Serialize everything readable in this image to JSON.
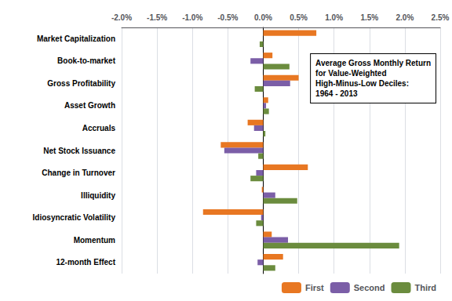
{
  "chart_data": {
    "type": "bar",
    "orientation": "horizontal",
    "categories": [
      "Market Capitalization",
      "Book-to-market",
      "Gross Profitability",
      "Asset Growth",
      "Accruals",
      "Net Stock Issuance",
      "Change in Turnover",
      "Illiquidity",
      "Idiosyncratic Volatility",
      "Momentum",
      "12-month Effect"
    ],
    "series": [
      {
        "name": "First",
        "color": "#E87722",
        "values": [
          0.75,
          0.13,
          0.5,
          0.07,
          -0.22,
          -0.6,
          0.63,
          -0.02,
          -0.85,
          0.12,
          0.28
        ]
      },
      {
        "name": "Second",
        "color": "#7B5EA7",
        "values": [
          0.0,
          -0.18,
          0.38,
          0.04,
          -0.13,
          -0.55,
          -0.1,
          0.17,
          -0.03,
          0.35,
          -0.08
        ]
      },
      {
        "name": "Third",
        "color": "#6B8C3E",
        "values": [
          -0.05,
          0.37,
          -0.12,
          0.08,
          0.03,
          -0.07,
          -0.18,
          0.48,
          -0.1,
          1.92,
          0.17
        ]
      }
    ],
    "xlim": [
      -2.0,
      2.5
    ],
    "xticks": [
      {
        "value": -2.0,
        "label": "-2.0%"
      },
      {
        "value": -1.5,
        "label": "-1.5%"
      },
      {
        "value": -1.0,
        "label": "-1.0%"
      },
      {
        "value": -0.5,
        "label": "-0.5%"
      },
      {
        "value": 0.0,
        "label": "0.0%"
      },
      {
        "value": 0.5,
        "label": "0.5%"
      },
      {
        "value": 1.0,
        "label": "1.0%"
      },
      {
        "value": 1.5,
        "label": "1.5%"
      },
      {
        "value": 2.0,
        "label": "2.0%"
      },
      {
        "value": 2.5,
        "label": "2.5%"
      }
    ],
    "grid": true,
    "legend": "lower right",
    "annotation": "Average Gross Monthly Return\nfor Value-Weighted\nHigh-Minus-Low Deciles:\n1964 - 2013"
  }
}
